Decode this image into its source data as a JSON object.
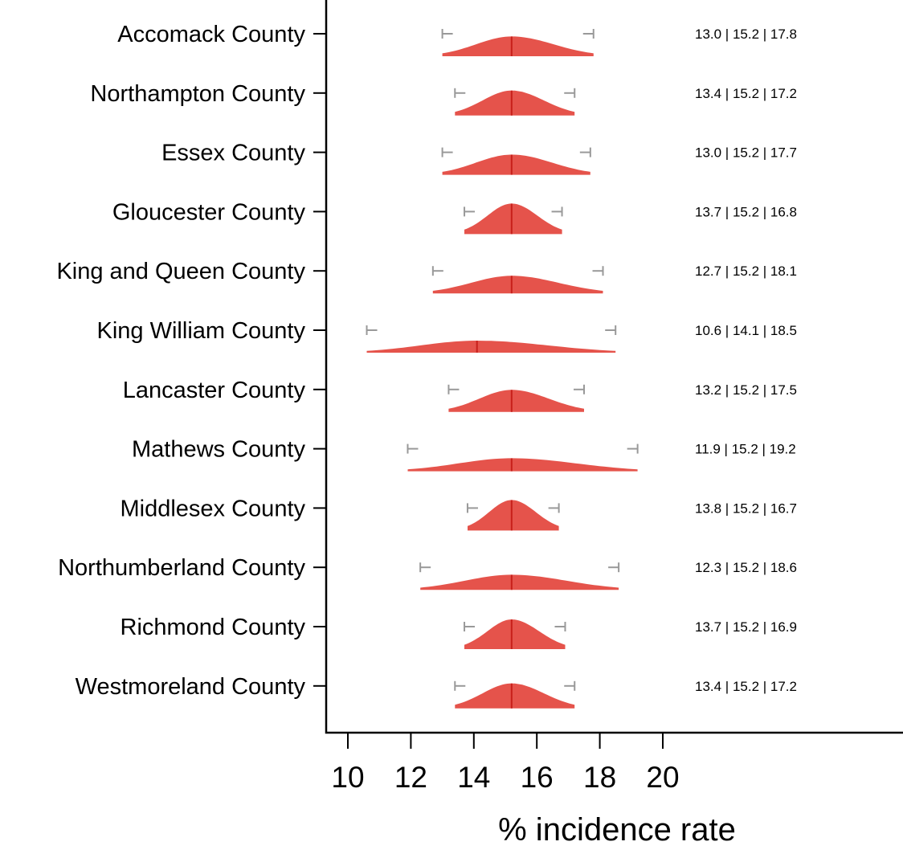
{
  "chart_data": {
    "type": "ridgeline",
    "xlabel": "% incidence rate",
    "xlim": [
      9.3,
      26.5
    ],
    "xticks": [
      10,
      12,
      14,
      16,
      18,
      20
    ],
    "colors": {
      "fill": "#e5534b",
      "median": "#c8201b",
      "ci": "#999999"
    },
    "rows": [
      {
        "label": "Accomack County",
        "low": 13.0,
        "median": 15.2,
        "high": 17.8,
        "annotation": "13.0 | 15.2 | 17.8"
      },
      {
        "label": "Northampton County",
        "low": 13.4,
        "median": 15.2,
        "high": 17.2,
        "annotation": "13.4 | 15.2 | 17.2"
      },
      {
        "label": "Essex County",
        "low": 13.0,
        "median": 15.2,
        "high": 17.7,
        "annotation": "13.0 | 15.2 | 17.7"
      },
      {
        "label": "Gloucester County",
        "low": 13.7,
        "median": 15.2,
        "high": 16.8,
        "annotation": "13.7 | 15.2 | 16.8"
      },
      {
        "label": "King and Queen County",
        "low": 12.7,
        "median": 15.2,
        "high": 18.1,
        "annotation": "12.7 | 15.2 | 18.1"
      },
      {
        "label": "King William County",
        "low": 10.6,
        "median": 14.1,
        "high": 18.5,
        "annotation": "10.6 | 14.1 | 18.5"
      },
      {
        "label": "Lancaster County",
        "low": 13.2,
        "median": 15.2,
        "high": 17.5,
        "annotation": "13.2 | 15.2 | 17.5"
      },
      {
        "label": "Mathews County",
        "low": 11.9,
        "median": 15.2,
        "high": 19.2,
        "annotation": "11.9 | 15.2 | 19.2"
      },
      {
        "label": "Middlesex County",
        "low": 13.8,
        "median": 15.2,
        "high": 16.7,
        "annotation": "13.8 | 15.2 | 16.7"
      },
      {
        "label": "Northumberland County",
        "low": 12.3,
        "median": 15.2,
        "high": 18.6,
        "annotation": "12.3 | 15.2 | 18.6"
      },
      {
        "label": "Richmond County",
        "low": 13.7,
        "median": 15.2,
        "high": 16.9,
        "annotation": "13.7 | 15.2 | 16.9"
      },
      {
        "label": "Westmoreland County",
        "low": 13.4,
        "median": 15.2,
        "high": 17.2,
        "annotation": "13.4 | 15.2 | 17.2"
      }
    ]
  }
}
